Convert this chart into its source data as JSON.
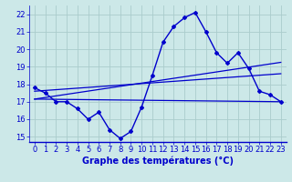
{
  "title": "Graphe des températures (°C)",
  "bg_color": "#cce8e8",
  "grid_color": "#aacccc",
  "line_color": "#0000cc",
  "xlim": [
    -0.5,
    23.5
  ],
  "ylim": [
    14.7,
    22.5
  ],
  "xticks": [
    0,
    1,
    2,
    3,
    4,
    5,
    6,
    7,
    8,
    9,
    10,
    11,
    12,
    13,
    14,
    15,
    16,
    17,
    18,
    19,
    20,
    21,
    22,
    23
  ],
  "yticks": [
    15,
    16,
    17,
    18,
    19,
    20,
    21,
    22
  ],
  "main_x": [
    0,
    1,
    2,
    3,
    4,
    5,
    6,
    7,
    8,
    9,
    10,
    11,
    12,
    13,
    14,
    15,
    16,
    17,
    18,
    19,
    20,
    21,
    22,
    23
  ],
  "main_y": [
    17.8,
    17.5,
    17.0,
    17.0,
    16.6,
    16.0,
    16.4,
    15.4,
    14.9,
    15.3,
    16.7,
    18.5,
    20.4,
    21.3,
    21.8,
    22.1,
    21.0,
    19.8,
    19.2,
    19.8,
    18.9,
    17.6,
    17.4,
    17.0
  ],
  "trend1_x": [
    0,
    23
  ],
  "trend1_y": [
    17.6,
    18.6
  ],
  "trend2_x": [
    0,
    23
  ],
  "trend2_y": [
    17.15,
    19.25
  ],
  "trend3_x": [
    0,
    23
  ],
  "trend3_y": [
    17.15,
    17.0
  ],
  "xlabel_fontsize": 7,
  "tick_fontsize": 6,
  "linewidth": 1.0,
  "markersize": 2.0
}
